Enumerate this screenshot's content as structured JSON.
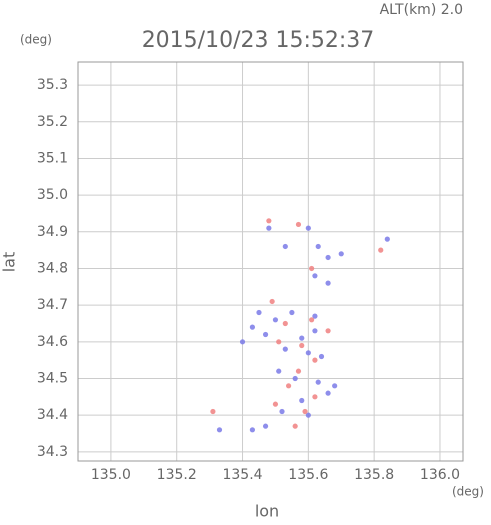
{
  "chart_data": {
    "type": "scatter",
    "title": "2015/10/23 15:52:37",
    "subtitle": "ALT(km) 2.0",
    "y_unit": "(deg)",
    "x_unit": "(deg)",
    "x_label": "lon",
    "y_label": "lat",
    "xlim": [
      134.9,
      136.07
    ],
    "ylim": [
      34.275,
      35.363
    ],
    "xticks": [
      {
        "value": 135.0,
        "label": "135.0"
      },
      {
        "value": 135.2,
        "label": "135.2"
      },
      {
        "value": 135.4,
        "label": "135.4"
      },
      {
        "value": 135.6,
        "label": "135.6"
      },
      {
        "value": 135.8,
        "label": "135.8"
      },
      {
        "value": 136.0,
        "label": "136.0"
      }
    ],
    "yticks": [
      {
        "value": 34.3,
        "label": "34.3"
      },
      {
        "value": 34.4,
        "label": "34.4"
      },
      {
        "value": 34.5,
        "label": "34.5"
      },
      {
        "value": 34.6,
        "label": "34.6"
      },
      {
        "value": 34.7,
        "label": "34.7"
      },
      {
        "value": 34.8,
        "label": "34.8"
      },
      {
        "value": 34.9,
        "label": "34.9"
      },
      {
        "value": 35.0,
        "label": "35.0"
      },
      {
        "value": 35.1,
        "label": "35.1"
      },
      {
        "value": 35.2,
        "label": "35.2"
      },
      {
        "value": 35.3,
        "label": "35.3"
      }
    ],
    "grid": true,
    "series": [
      {
        "color": "#7a7ae8",
        "x": [
          135.48,
          135.6,
          135.53,
          135.63,
          135.66,
          135.7,
          135.84,
          135.62,
          135.66,
          135.45,
          135.5,
          135.55,
          135.62,
          135.43,
          135.47,
          135.58,
          135.62,
          135.53,
          135.6,
          135.64,
          135.51,
          135.56,
          135.63,
          135.66,
          135.58,
          135.52,
          135.47,
          135.43,
          135.33,
          135.6,
          135.68,
          135.4
        ],
        "values": [
          34.91,
          34.91,
          34.86,
          34.86,
          34.83,
          34.84,
          34.88,
          34.78,
          34.76,
          34.68,
          34.66,
          34.68,
          34.67,
          34.64,
          34.62,
          34.61,
          34.63,
          34.58,
          34.57,
          34.56,
          34.52,
          34.5,
          34.49,
          34.46,
          34.44,
          34.41,
          34.37,
          34.36,
          34.36,
          34.4,
          34.48,
          34.6
        ]
      },
      {
        "color": "#f08080",
        "x": [
          135.48,
          135.57,
          135.61,
          135.49,
          135.53,
          135.61,
          135.58,
          135.62,
          135.51,
          135.54,
          135.62,
          135.5,
          135.59,
          135.31,
          135.56,
          135.82,
          135.66,
          135.57
        ],
        "values": [
          34.93,
          34.92,
          34.8,
          34.71,
          34.65,
          34.66,
          34.59,
          34.55,
          34.6,
          34.48,
          34.45,
          34.43,
          34.41,
          34.41,
          34.37,
          34.85,
          34.63,
          34.52
        ]
      }
    ]
  }
}
